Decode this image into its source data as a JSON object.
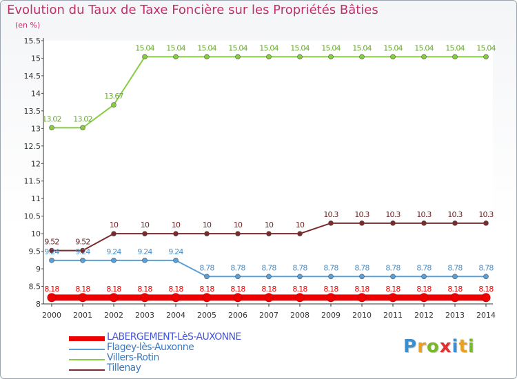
{
  "title": "Evolution du Taux de Taxe Foncière sur les Propriétés Bâties",
  "subtitle": "(en %)",
  "logo": {
    "letters": [
      "P",
      "r",
      "o",
      "x",
      "i",
      "t",
      "i"
    ],
    "colors": [
      "#3a8fd0",
      "#e8a020",
      "#7ab828",
      "#e03030",
      "#3a8fd0",
      "#e8a020",
      "#7ab828"
    ]
  },
  "chart_data": {
    "type": "line",
    "title": "Evolution du Taux de Taxe Foncière sur les Propriétés Bâties",
    "ylabel": "(en %)",
    "xlabel": "",
    "ylim": [
      8,
      15.5
    ],
    "yticks": [
      "8",
      "8.5",
      "9",
      "9.5",
      "10",
      "10.5",
      "11",
      "11.5",
      "12",
      "12.5",
      "13",
      "13.5",
      "14",
      "14.5",
      "15",
      "15.5"
    ],
    "categories": [
      "2000",
      "2001",
      "2002",
      "2003",
      "2004",
      "2005",
      "2006",
      "2007",
      "2008",
      "2009",
      "2010",
      "2011",
      "2012",
      "2013",
      "2014"
    ],
    "legend_position": "bottom-left",
    "series": [
      {
        "name": "LABERGEMENT-LèS-AUXONNE",
        "color": "#ee0000",
        "label_color": "#ee0000",
        "values": [
          8.18,
          8.18,
          8.18,
          8.18,
          8.18,
          8.18,
          8.18,
          8.18,
          8.18,
          8.18,
          8.18,
          8.18,
          8.18,
          8.18,
          8.18
        ],
        "labels": [
          "8.18",
          "8.18",
          "8.18",
          "8.18",
          "8.18",
          "8.18",
          "8.18",
          "8.18",
          "8.18",
          "8.18",
          "8.18",
          "8.18",
          "8.18",
          "8.18",
          "8.18"
        ]
      },
      {
        "name": "Flagey-lès-Auxonne",
        "color": "#5aa0d8",
        "label_color": "#4a8fc8",
        "values": [
          9.24,
          9.24,
          9.24,
          9.24,
          9.24,
          8.78,
          8.78,
          8.78,
          8.78,
          8.78,
          8.78,
          8.78,
          8.78,
          8.78,
          8.78
        ],
        "labels": [
          "9.24",
          "9.24",
          "9.24",
          "9.24",
          "9.24",
          "8.78",
          "8.78",
          "8.78",
          "8.78",
          "8.78",
          "8.78",
          "8.78",
          "8.78",
          "8.78",
          "8.78"
        ]
      },
      {
        "name": "Villers-Rotin",
        "color": "#88cc44",
        "label_color": "#6aaa30",
        "values": [
          13.02,
          13.02,
          13.67,
          15.04,
          15.04,
          15.04,
          15.04,
          15.04,
          15.04,
          15.04,
          15.04,
          15.04,
          15.04,
          15.04,
          15.04
        ],
        "labels": [
          "13.02",
          "13.02",
          "13.67",
          "15.04",
          "15.04",
          "15.04",
          "15.04",
          "15.04",
          "15.04",
          "15.04",
          "15.04",
          "15.04",
          "15.04",
          "15.04",
          "15.04"
        ]
      },
      {
        "name": "Tillenay",
        "color": "#7a2a2a",
        "label_color": "#6a1f1f",
        "values": [
          9.52,
          9.52,
          10,
          10,
          10,
          10,
          10,
          10,
          10,
          10.3,
          10.3,
          10.3,
          10.3,
          10.3,
          10.3
        ],
        "labels": [
          "9.52",
          "9.52",
          "10",
          "10",
          "10",
          "10",
          "10",
          "10",
          "10",
          "10.3",
          "10.3",
          "10.3",
          "10.3",
          "10.3",
          "10.3"
        ]
      }
    ]
  }
}
